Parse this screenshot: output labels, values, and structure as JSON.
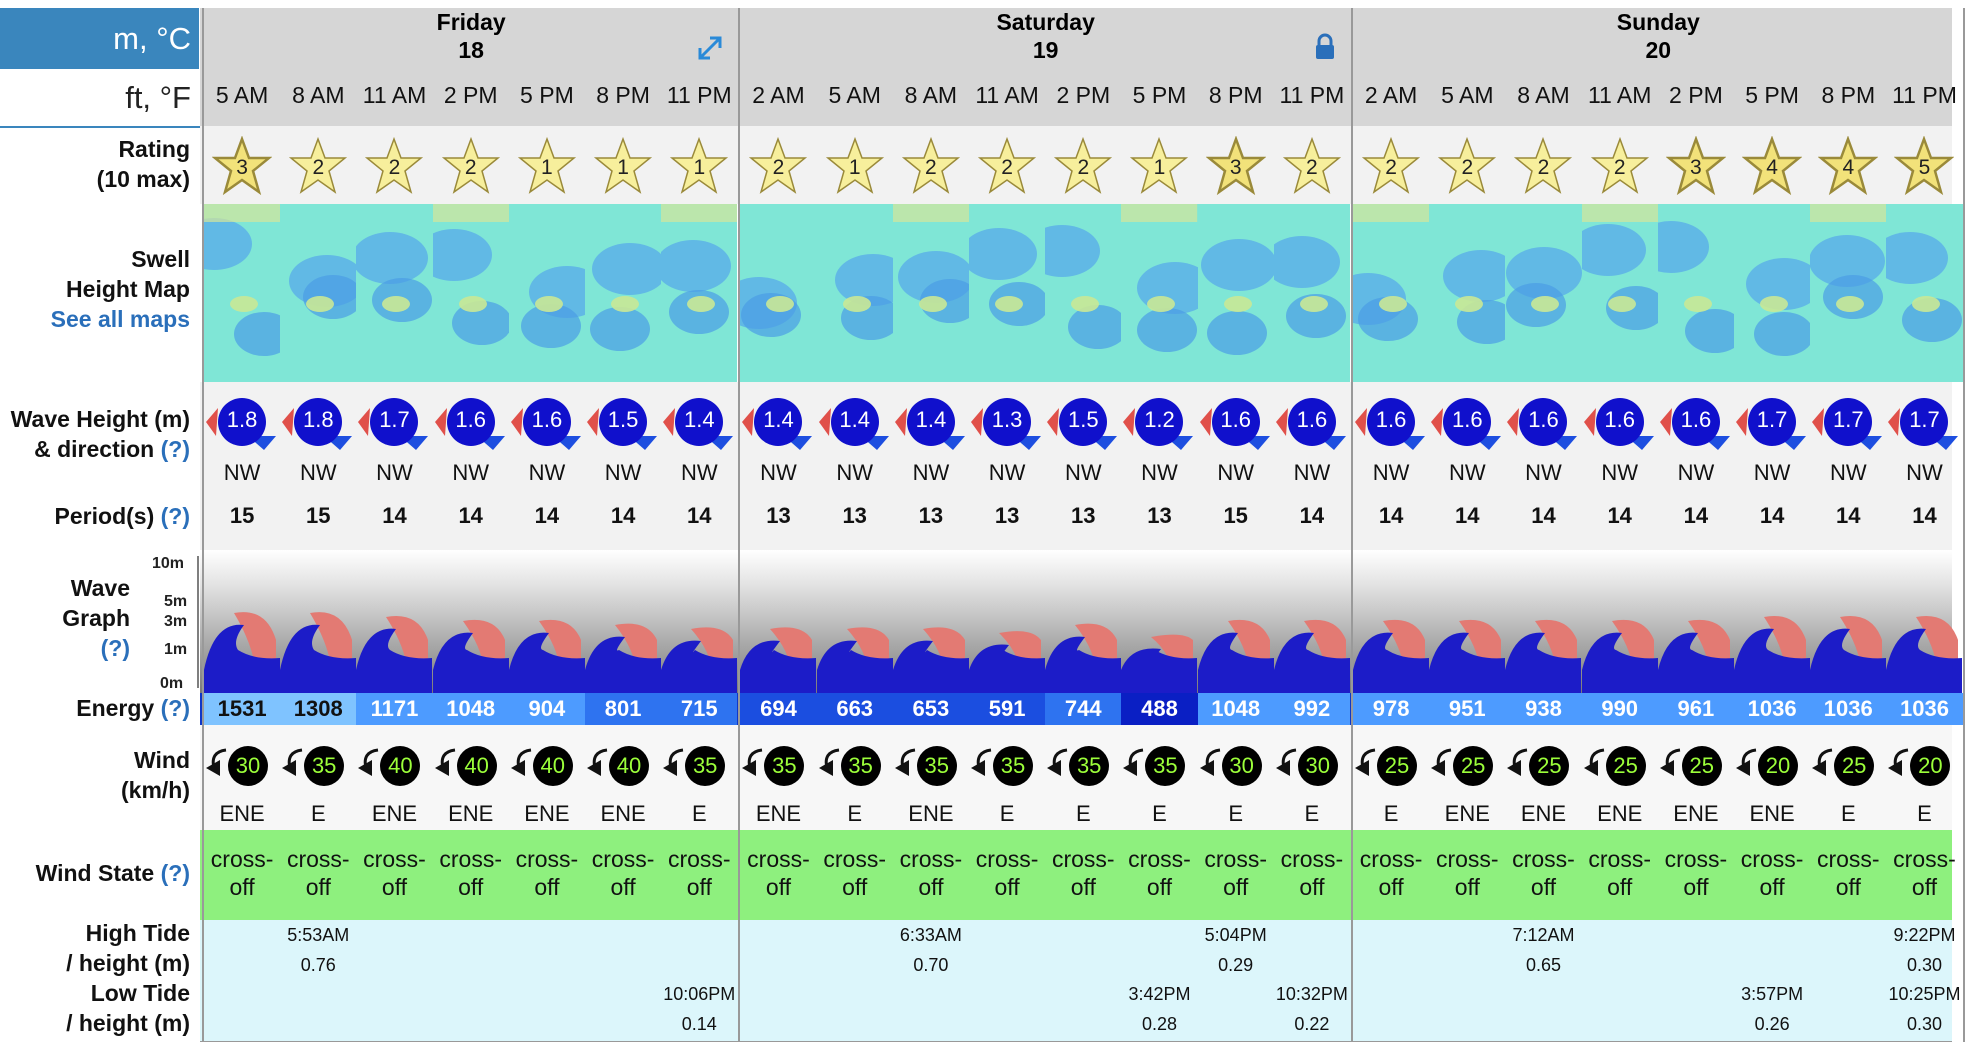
{
  "units": {
    "metric": "m, °C",
    "imperial": "ft, °F"
  },
  "days": [
    {
      "name": "Friday",
      "date": "18",
      "icon": "expand-icon"
    },
    {
      "name": "Saturday",
      "date": "19",
      "icon": "lock-icon"
    },
    {
      "name": "Sunday",
      "date": "20"
    }
  ],
  "labels": {
    "rating": [
      "Rating",
      "(10 max)"
    ],
    "swell": [
      "Swell",
      "Height Map",
      "See all maps"
    ],
    "wave": [
      "Wave Height (m)",
      "& direction",
      "(?)"
    ],
    "period": [
      "Period(s)",
      "(?)"
    ],
    "graph": [
      "Wave",
      "Graph",
      "(?)"
    ],
    "graph_scale": [
      "10m",
      "5m",
      "3m",
      "1m",
      "0m"
    ],
    "energy": [
      "Energy",
      "(?)"
    ],
    "wind": [
      "Wind",
      "(km/h)"
    ],
    "windstate": [
      "Wind State",
      "(?)"
    ],
    "tide": [
      "High Tide",
      "/ height (m)",
      "Low Tide",
      "/ height (m)"
    ]
  },
  "times": [
    "5 AM",
    "8 AM",
    "11 AM",
    "2 PM",
    "5 PM",
    "8 PM",
    "11 PM",
    "2 AM",
    "5 AM",
    "8 AM",
    "11 AM",
    "2 PM",
    "5 PM",
    "8 PM",
    "11 PM",
    "2 AM",
    "5 AM",
    "8 AM",
    "11 AM",
    "2 PM",
    "5 PM",
    "8 PM",
    "11 PM"
  ],
  "ratings": [
    "3",
    "2",
    "2",
    "2",
    "1",
    "1",
    "1",
    "2",
    "1",
    "2",
    "2",
    "2",
    "1",
    "3",
    "2",
    "2",
    "2",
    "2",
    "2",
    "3",
    "4",
    "4",
    "5"
  ],
  "wave_heights": [
    "1.8",
    "1.8",
    "1.7",
    "1.6",
    "1.6",
    "1.5",
    "1.4",
    "1.4",
    "1.4",
    "1.4",
    "1.3",
    "1.5",
    "1.2",
    "1.6",
    "1.6",
    "1.6",
    "1.6",
    "1.6",
    "1.6",
    "1.6",
    "1.7",
    "1.7",
    "1.7"
  ],
  "wave_dirs": [
    "NW",
    "NW",
    "NW",
    "NW",
    "NW",
    "NW",
    "NW",
    "NW",
    "NW",
    "NW",
    "NW",
    "NW",
    "NW",
    "NW",
    "NW",
    "NW",
    "NW",
    "NW",
    "NW",
    "NW",
    "NW",
    "NW",
    "NW"
  ],
  "periods": [
    "15",
    "15",
    "14",
    "14",
    "14",
    "14",
    "14",
    "13",
    "13",
    "13",
    "13",
    "13",
    "13",
    "15",
    "14",
    "14",
    "14",
    "14",
    "14",
    "14",
    "14",
    "14",
    "14"
  ],
  "energy": [
    "1531",
    "1308",
    "1171",
    "1048",
    "904",
    "801",
    "715",
    "694",
    "663",
    "653",
    "591",
    "744",
    "488",
    "1048",
    "992",
    "978",
    "951",
    "938",
    "990",
    "961",
    "1036",
    "1036",
    "1036"
  ],
  "wind_speeds": [
    "30",
    "35",
    "40",
    "40",
    "40",
    "40",
    "35",
    "35",
    "35",
    "35",
    "35",
    "35",
    "35",
    "30",
    "30",
    "25",
    "25",
    "25",
    "25",
    "25",
    "20",
    "25",
    "20"
  ],
  "wind_dirs": [
    "ENE",
    "E",
    "ENE",
    "ENE",
    "ENE",
    "ENE",
    "E",
    "ENE",
    "E",
    "ENE",
    "E",
    "E",
    "E",
    "E",
    "E",
    "E",
    "ENE",
    "ENE",
    "ENE",
    "ENE",
    "ENE",
    "E",
    "E"
  ],
  "wind_state": [
    "cross-",
    "off"
  ],
  "tides": {
    "high": [
      {
        "col": 1,
        "time": "5:53AM",
        "height": "0.76"
      },
      {
        "col": 9,
        "time": "6:33AM",
        "height": "0.70"
      },
      {
        "col": 13,
        "time": "5:04PM",
        "height": "0.29"
      },
      {
        "col": 17,
        "time": "7:12AM",
        "height": "0.65"
      },
      {
        "col": 22,
        "time": "9:22PM",
        "height": "0.30"
      }
    ],
    "low": [
      {
        "col": 6,
        "time": "10:06PM",
        "height": "0.14"
      },
      {
        "col": 12,
        "time": "3:42PM",
        "height": "0.28"
      },
      {
        "col": 14,
        "time": "10:32PM",
        "height": "0.22"
      },
      {
        "col": 20,
        "time": "3:57PM",
        "height": "0.26"
      },
      {
        "col": 22,
        "time": "10:25PM",
        "height": "0.30"
      }
    ]
  },
  "colors": {
    "header_blue": "#3a86bd",
    "day_header": "#d6d6d6",
    "wind_state_green": "#8ef07e",
    "tide_bg": "#dcf6fb",
    "wave_circle": "#1010cc",
    "wind_circle": "#000000",
    "wind_text": "#9cff3a"
  }
}
